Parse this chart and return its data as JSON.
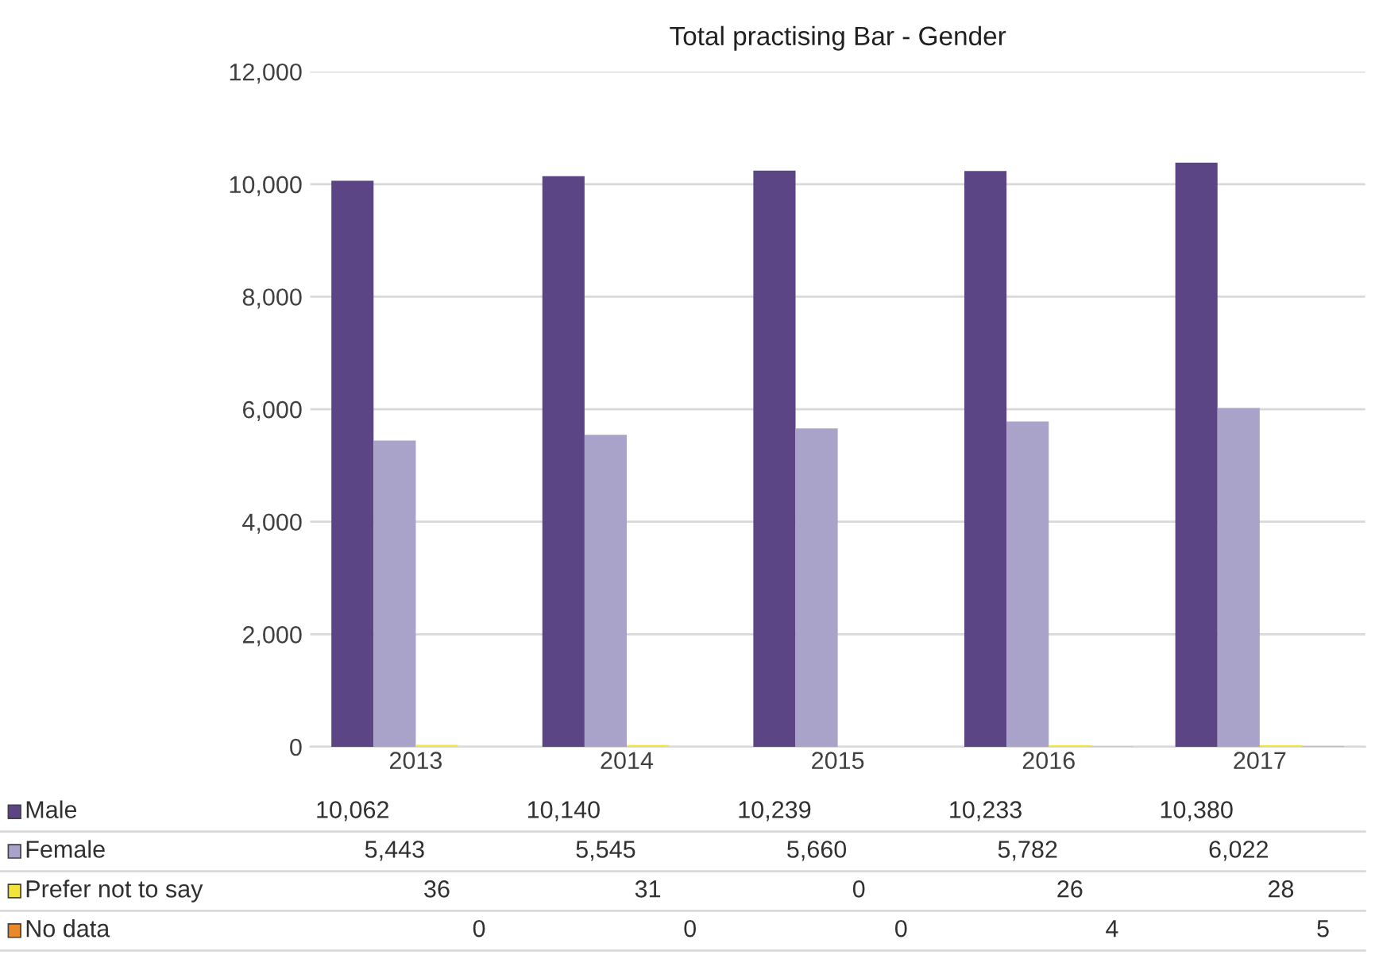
{
  "chart_data": {
    "type": "bar",
    "title": "Total practising Bar - Gender",
    "categories": [
      "2013",
      "2014",
      "2015",
      "2016",
      "2017"
    ],
    "series": [
      {
        "name": "Male",
        "color": "#5b4585",
        "values": [
          10062,
          10140,
          10239,
          10233,
          10380
        ],
        "value_labels": [
          "10,062",
          "10,140",
          "10,239",
          "10,233",
          "10,380"
        ]
      },
      {
        "name": "Female",
        "color": "#a9a3c9",
        "values": [
          5443,
          5545,
          5660,
          5782,
          6022
        ],
        "value_labels": [
          "5,443",
          "5,545",
          "5,660",
          "5,782",
          "6,022"
        ]
      },
      {
        "name": "Prefer not to say",
        "color": "#f2e43a",
        "values": [
          36,
          31,
          0,
          26,
          28
        ],
        "value_labels": [
          "36",
          "31",
          "0",
          "26",
          "28"
        ]
      },
      {
        "name": "No data",
        "color": "#e8892c",
        "values": [
          0,
          0,
          0,
          4,
          5
        ],
        "value_labels": [
          "0",
          "0",
          "0",
          "4",
          "5"
        ]
      }
    ],
    "ylim": [
      0,
      12000
    ],
    "yticks": [
      {
        "value": 0,
        "label": "0"
      },
      {
        "value": 2000,
        "label": "2,000"
      },
      {
        "value": 4000,
        "label": "4,000"
      },
      {
        "value": 6000,
        "label": "6,000"
      },
      {
        "value": 8000,
        "label": "8,000"
      },
      {
        "value": 10000,
        "label": "10,000"
      },
      {
        "value": 12000,
        "label": "12,000"
      }
    ],
    "grid": "y",
    "legend": "bottom left"
  }
}
